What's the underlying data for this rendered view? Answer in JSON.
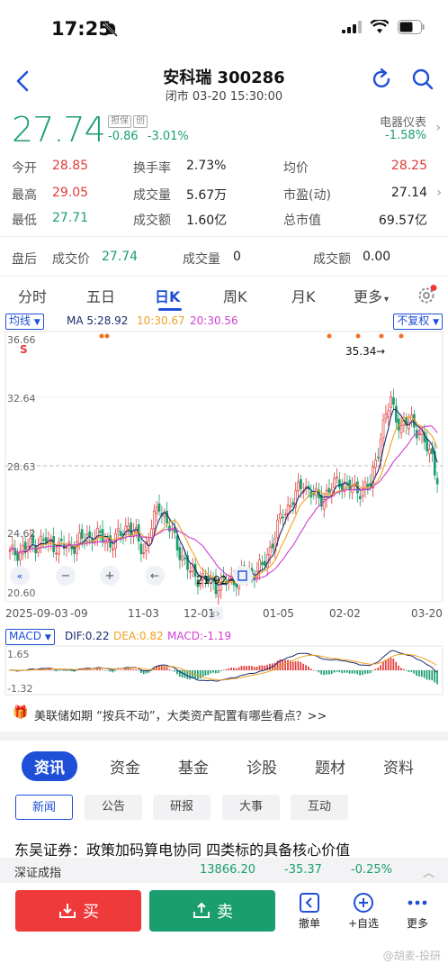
{
  "status": {
    "time": "17:25"
  },
  "nav": {
    "title": "安科瑞 300286",
    "subtitle": "闭市 03-20 15:30:00"
  },
  "quote": {
    "price": "27.74",
    "tags": [
      "担保",
      "创"
    ],
    "change": "-0.86",
    "change_pct": "-3.01%",
    "sector_name": "电器仪表",
    "sector_change": "-1.58%"
  },
  "stats": [
    {
      "label": "今开",
      "value": "28.85"
    },
    {
      "label": "换手率",
      "value": "2.73%"
    },
    {
      "label": "均价",
      "value": "28.25"
    },
    {
      "label": "最高",
      "value": "29.05"
    },
    {
      "label": "成交量",
      "value": "5.67万"
    },
    {
      "label": "市盈(动)",
      "value": "27.14"
    },
    {
      "label": "最低",
      "value": "27.71"
    },
    {
      "label": "成交额",
      "value": "1.60亿"
    },
    {
      "label": "总市值",
      "value": "69.57亿"
    }
  ],
  "after_hours": {
    "label": "盘后",
    "price_label": "成交价",
    "price": "27.74",
    "vol_label": "成交量",
    "vol": "0",
    "amt_label": "成交额",
    "amt": "0.00"
  },
  "chart_tabs": [
    "分时",
    "五日",
    "日K",
    "周K",
    "月K",
    "更多"
  ],
  "ma": {
    "select": "均线",
    "ma5": "MA 5:28.92",
    "ma10": "10:30.67",
    "ma20": "20:30.56",
    "fq": "不复权",
    "colors": {
      "ma5": "#1a2a6c",
      "ma10": "#f0a020",
      "ma20": "#d040d0"
    }
  },
  "chart_data": {
    "type": "candlestick",
    "y_labels": [
      "36.66",
      "32.64",
      "28.63",
      "24.62",
      "20.60"
    ],
    "x_labels": [
      "2025-09-03",
      "-09",
      "11-03",
      "12-01",
      "01-05",
      "02-02",
      "03-20"
    ],
    "ylim": [
      20.6,
      36.66
    ],
    "annotations": {
      "high": "35.34",
      "low": "21.92",
      "last_line": "28.63"
    },
    "marker": "S"
  },
  "macd": {
    "select": "MACD",
    "dif": "DIF:0.22",
    "dea": "DEA:0.82",
    "macd": "MACD:-1.19",
    "y_top": "1.65",
    "y_bottom": "-1.32"
  },
  "news_bar": "美联储如期 “按兵不动”，大类资产配置有哪些看点？>>",
  "info_tabs": [
    "资讯",
    "资金",
    "基金",
    "诊股",
    "题材",
    "资料"
  ],
  "sub_tabs": [
    "新闻",
    "公告",
    "研报",
    "大事",
    "互动"
  ],
  "headline": "东吴证券：政策加码算电协同 四类标的具备核心价值",
  "index_bar": {
    "name": "深证成指",
    "value": "13866.20",
    "change": "-35.37",
    "pct": "-0.25%"
  },
  "bottom": {
    "buy": "买",
    "sell": "卖",
    "cancel": "撤单",
    "watch": "+自选",
    "more": "更多",
    "watermark": "@胡麦-投研"
  }
}
